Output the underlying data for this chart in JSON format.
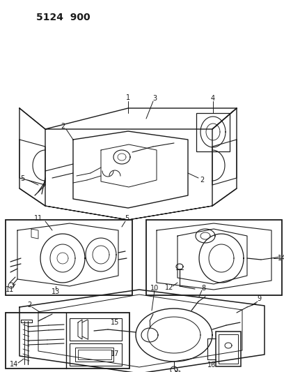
{
  "title": "5124 900",
  "bg_color": "#ffffff",
  "line_color": "#1a1a1a",
  "fig_width": 4.08,
  "fig_height": 5.33,
  "dpi": 100,
  "pw": 408,
  "ph": 533
}
